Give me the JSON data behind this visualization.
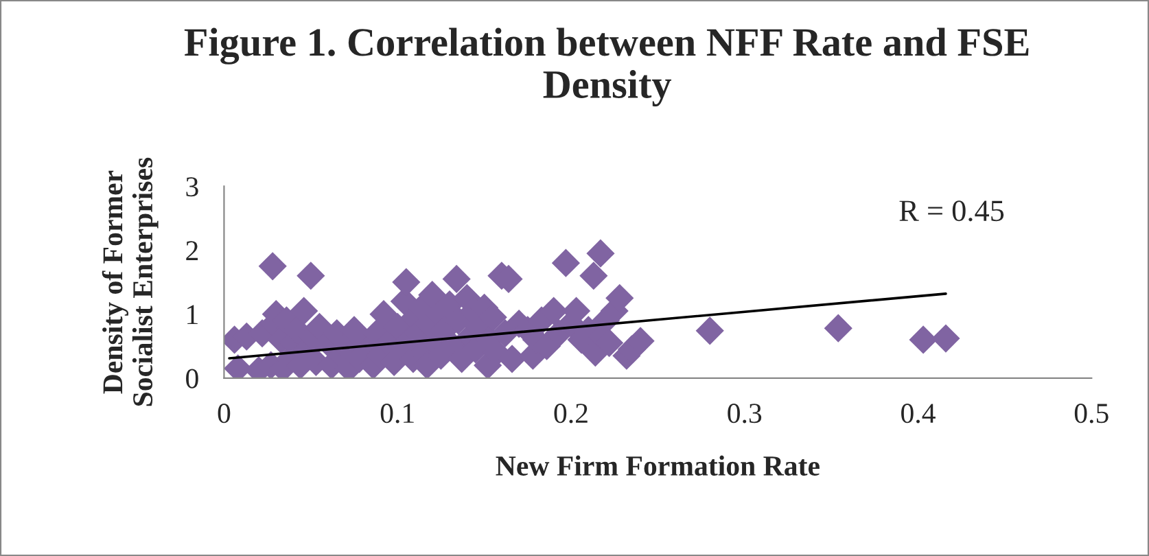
{
  "chart_data": {
    "type": "scatter",
    "title": "Figure 1. Correlation between NFF Rate and FSE Density",
    "xlabel": "New Firm Formation Rate",
    "ylabel": "Density of Former\nSocialist Enterprises",
    "annotations": [
      "R = 0.45"
    ],
    "xlim": [
      0,
      0.5
    ],
    "xticks": [
      0,
      0.1,
      0.2,
      0.3,
      0.4,
      0.5
    ],
    "ylim": [
      0,
      3
    ],
    "yticks": [
      0,
      1,
      2,
      3
    ],
    "grid": false,
    "legend": false,
    "series": [
      {
        "marker": "diamond",
        "color": "#8064a2",
        "x": [
          0.006,
          0.008,
          0.013,
          0.02,
          0.022,
          0.027,
          0.028,
          0.029,
          0.03,
          0.033,
          0.034,
          0.036,
          0.038,
          0.04,
          0.042,
          0.044,
          0.046,
          0.048,
          0.05,
          0.051,
          0.053,
          0.055,
          0.06,
          0.062,
          0.065,
          0.068,
          0.07,
          0.072,
          0.075,
          0.078,
          0.08,
          0.083,
          0.086,
          0.088,
          0.09,
          0.092,
          0.095,
          0.098,
          0.1,
          0.102,
          0.104,
          0.105,
          0.107,
          0.109,
          0.11,
          0.112,
          0.114,
          0.115,
          0.117,
          0.118,
          0.12,
          0.122,
          0.124,
          0.125,
          0.127,
          0.13,
          0.132,
          0.134,
          0.135,
          0.137,
          0.14,
          0.142,
          0.144,
          0.145,
          0.147,
          0.15,
          0.152,
          0.153,
          0.155,
          0.157,
          0.16,
          0.162,
          0.164,
          0.166,
          0.17,
          0.175,
          0.178,
          0.18,
          0.183,
          0.186,
          0.19,
          0.193,
          0.197,
          0.2,
          0.203,
          0.206,
          0.21,
          0.213,
          0.214,
          0.217,
          0.218,
          0.22,
          0.222,
          0.225,
          0.228,
          0.232,
          0.235,
          0.24,
          0.28,
          0.354,
          0.403,
          0.416
        ],
        "values": [
          0.6,
          0.15,
          0.65,
          0.12,
          0.7,
          0.2,
          1.75,
          0.85,
          1.0,
          0.6,
          0.15,
          0.9,
          0.3,
          0.55,
          0.75,
          0.2,
          1.05,
          0.45,
          1.6,
          0.65,
          0.25,
          0.8,
          0.55,
          0.2,
          0.7,
          0.35,
          0.5,
          0.15,
          0.75,
          0.3,
          0.6,
          0.45,
          0.2,
          0.7,
          0.35,
          1.0,
          0.55,
          0.25,
          0.8,
          0.45,
          1.2,
          1.5,
          0.6,
          0.3,
          0.95,
          0.7,
          1.1,
          0.4,
          0.2,
          0.85,
          1.3,
          0.55,
          1.0,
          0.35,
          0.75,
          1.15,
          0.5,
          1.55,
          0.9,
          0.3,
          1.25,
          0.65,
          1.05,
          0.45,
          0.8,
          1.1,
          0.2,
          0.6,
          0.95,
          0.4,
          1.6,
          0.7,
          1.55,
          0.3,
          0.85,
          0.75,
          0.35,
          0.6,
          0.9,
          0.5,
          1.05,
          0.7,
          1.8,
          0.85,
          1.05,
          0.6,
          0.75,
          1.6,
          0.4,
          1.95,
          0.65,
          0.9,
          0.55,
          1.05,
          1.25,
          0.35,
          0.45,
          0.58,
          0.74,
          0.78,
          0.6,
          0.62
        ]
      },
      {
        "type": "line",
        "color": "#000000",
        "x": [
          0.003,
          0.416
        ],
        "values": [
          0.31,
          1.32
        ]
      }
    ]
  }
}
